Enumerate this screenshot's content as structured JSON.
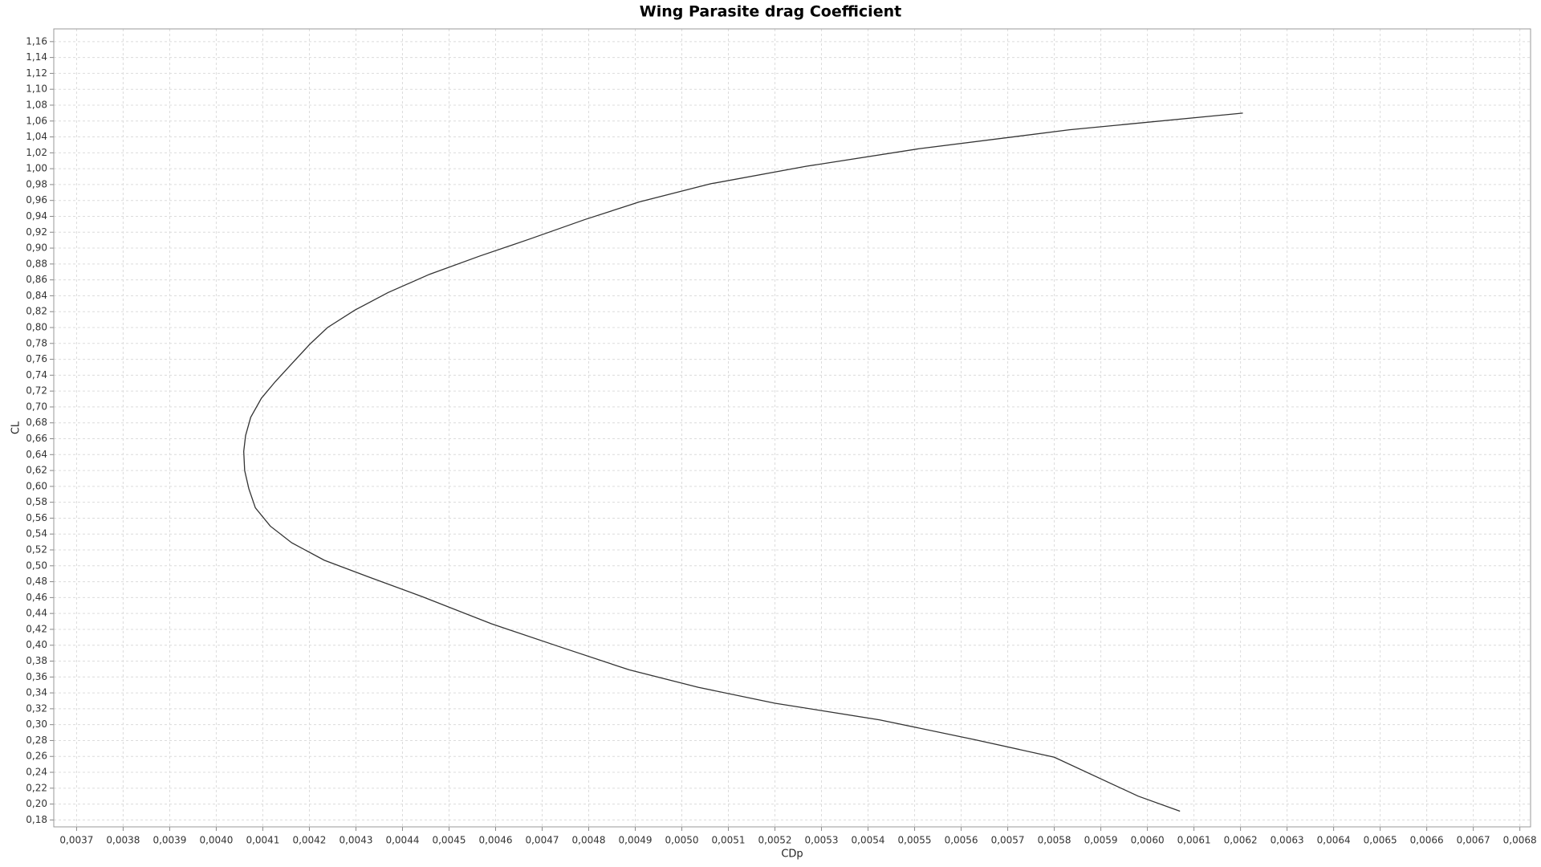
{
  "chart_data": {
    "type": "line",
    "title": "Wing Parasite drag Coefficient",
    "xlabel": "CDp",
    "ylabel": "CL",
    "color": "#333333",
    "grid": true,
    "x": [
      0.00607,
      0.00598,
      0.0058,
      0.00563,
      0.005425,
      0.0052,
      0.005035,
      0.004887,
      0.004748,
      0.004591,
      0.004443,
      0.004327,
      0.004232,
      0.004162,
      0.004116,
      0.004084,
      0.00407,
      0.004061,
      0.004059,
      0.004063,
      0.004074,
      0.004097,
      0.004127,
      0.004163,
      0.004201,
      0.004239,
      0.004298,
      0.004369,
      0.004458,
      0.004566,
      0.004676,
      0.004792,
      0.004908,
      0.005062,
      0.005267,
      0.005508,
      0.005833,
      0.006205
    ],
    "values": [
      0.191,
      0.21,
      0.259,
      0.281,
      0.306,
      0.327,
      0.347,
      0.369,
      0.396,
      0.427,
      0.461,
      0.486,
      0.507,
      0.529,
      0.55,
      0.573,
      0.597,
      0.62,
      0.644,
      0.664,
      0.687,
      0.711,
      0.732,
      0.755,
      0.779,
      0.8,
      0.822,
      0.844,
      0.867,
      0.89,
      0.912,
      0.936,
      0.958,
      0.981,
      1.003,
      1.025,
      1.049,
      1.07
    ],
    "xlim": [
      0.003651,
      0.006823
    ],
    "ylim": [
      0.1713,
      1.176
    ],
    "xticks": [
      {
        "value": 0.0037,
        "label": "0,0037"
      },
      {
        "value": 0.0038,
        "label": "0,0038"
      },
      {
        "value": 0.0039,
        "label": "0,0039"
      },
      {
        "value": 0.004,
        "label": "0,0040"
      },
      {
        "value": 0.0041,
        "label": "0,0041"
      },
      {
        "value": 0.0042,
        "label": "0,0042"
      },
      {
        "value": 0.0043,
        "label": "0,0043"
      },
      {
        "value": 0.0044,
        "label": "0,0044"
      },
      {
        "value": 0.0045,
        "label": "0,0045"
      },
      {
        "value": 0.0046,
        "label": "0,0046"
      },
      {
        "value": 0.0047,
        "label": "0,0047"
      },
      {
        "value": 0.0048,
        "label": "0,0048"
      },
      {
        "value": 0.0049,
        "label": "0,0049"
      },
      {
        "value": 0.005,
        "label": "0,0050"
      },
      {
        "value": 0.0051,
        "label": "0,0051"
      },
      {
        "value": 0.0052,
        "label": "0,0052"
      },
      {
        "value": 0.0053,
        "label": "0,0053"
      },
      {
        "value": 0.0054,
        "label": "0,0054"
      },
      {
        "value": 0.0055,
        "label": "0,0055"
      },
      {
        "value": 0.0056,
        "label": "0,0056"
      },
      {
        "value": 0.0057,
        "label": "0,0057"
      },
      {
        "value": 0.0058,
        "label": "0,0058"
      },
      {
        "value": 0.0059,
        "label": "0,0059"
      },
      {
        "value": 0.006,
        "label": "0,0060"
      },
      {
        "value": 0.0061,
        "label": "0,0061"
      },
      {
        "value": 0.0062,
        "label": "0,0062"
      },
      {
        "value": 0.0063,
        "label": "0,0063"
      },
      {
        "value": 0.0064,
        "label": "0,0064"
      },
      {
        "value": 0.0065,
        "label": "0,0065"
      },
      {
        "value": 0.0066,
        "label": "0,0066"
      },
      {
        "value": 0.0067,
        "label": "0,0067"
      },
      {
        "value": 0.0068,
        "label": "0,0068"
      }
    ],
    "yticks": [
      {
        "value": 0.18,
        "label": "0,18"
      },
      {
        "value": 0.2,
        "label": "0,20"
      },
      {
        "value": 0.22,
        "label": "0,22"
      },
      {
        "value": 0.24,
        "label": "0,24"
      },
      {
        "value": 0.26,
        "label": "0,26"
      },
      {
        "value": 0.28,
        "label": "0,28"
      },
      {
        "value": 0.3,
        "label": "0,30"
      },
      {
        "value": 0.32,
        "label": "0,32"
      },
      {
        "value": 0.34,
        "label": "0,34"
      },
      {
        "value": 0.36,
        "label": "0,36"
      },
      {
        "value": 0.38,
        "label": "0,38"
      },
      {
        "value": 0.4,
        "label": "0,40"
      },
      {
        "value": 0.42,
        "label": "0,42"
      },
      {
        "value": 0.44,
        "label": "0,44"
      },
      {
        "value": 0.46,
        "label": "0,46"
      },
      {
        "value": 0.48,
        "label": "0,48"
      },
      {
        "value": 0.5,
        "label": "0,50"
      },
      {
        "value": 0.52,
        "label": "0,52"
      },
      {
        "value": 0.54,
        "label": "0,54"
      },
      {
        "value": 0.56,
        "label": "0,56"
      },
      {
        "value": 0.58,
        "label": "0,58"
      },
      {
        "value": 0.6,
        "label": "0,60"
      },
      {
        "value": 0.62,
        "label": "0,62"
      },
      {
        "value": 0.64,
        "label": "0,64"
      },
      {
        "value": 0.66,
        "label": "0,66"
      },
      {
        "value": 0.68,
        "label": "0,68"
      },
      {
        "value": 0.7,
        "label": "0,70"
      },
      {
        "value": 0.72,
        "label": "0,72"
      },
      {
        "value": 0.74,
        "label": "0,74"
      },
      {
        "value": 0.76,
        "label": "0,76"
      },
      {
        "value": 0.78,
        "label": "0,78"
      },
      {
        "value": 0.8,
        "label": "0,80"
      },
      {
        "value": 0.82,
        "label": "0,82"
      },
      {
        "value": 0.84,
        "label": "0,84"
      },
      {
        "value": 0.86,
        "label": "0,86"
      },
      {
        "value": 0.88,
        "label": "0,88"
      },
      {
        "value": 0.9,
        "label": "0,90"
      },
      {
        "value": 0.92,
        "label": "0,92"
      },
      {
        "value": 0.94,
        "label": "0,94"
      },
      {
        "value": 0.96,
        "label": "0,96"
      },
      {
        "value": 0.98,
        "label": "0,98"
      },
      {
        "value": 1.0,
        "label": "1,00"
      },
      {
        "value": 1.02,
        "label": "1,02"
      },
      {
        "value": 1.04,
        "label": "1,04"
      },
      {
        "value": 1.06,
        "label": "1,06"
      },
      {
        "value": 1.08,
        "label": "1,08"
      },
      {
        "value": 1.1,
        "label": "1,10"
      },
      {
        "value": 1.12,
        "label": "1,12"
      },
      {
        "value": 1.14,
        "label": "1,14"
      },
      {
        "value": 1.16,
        "label": "1,16"
      }
    ]
  }
}
